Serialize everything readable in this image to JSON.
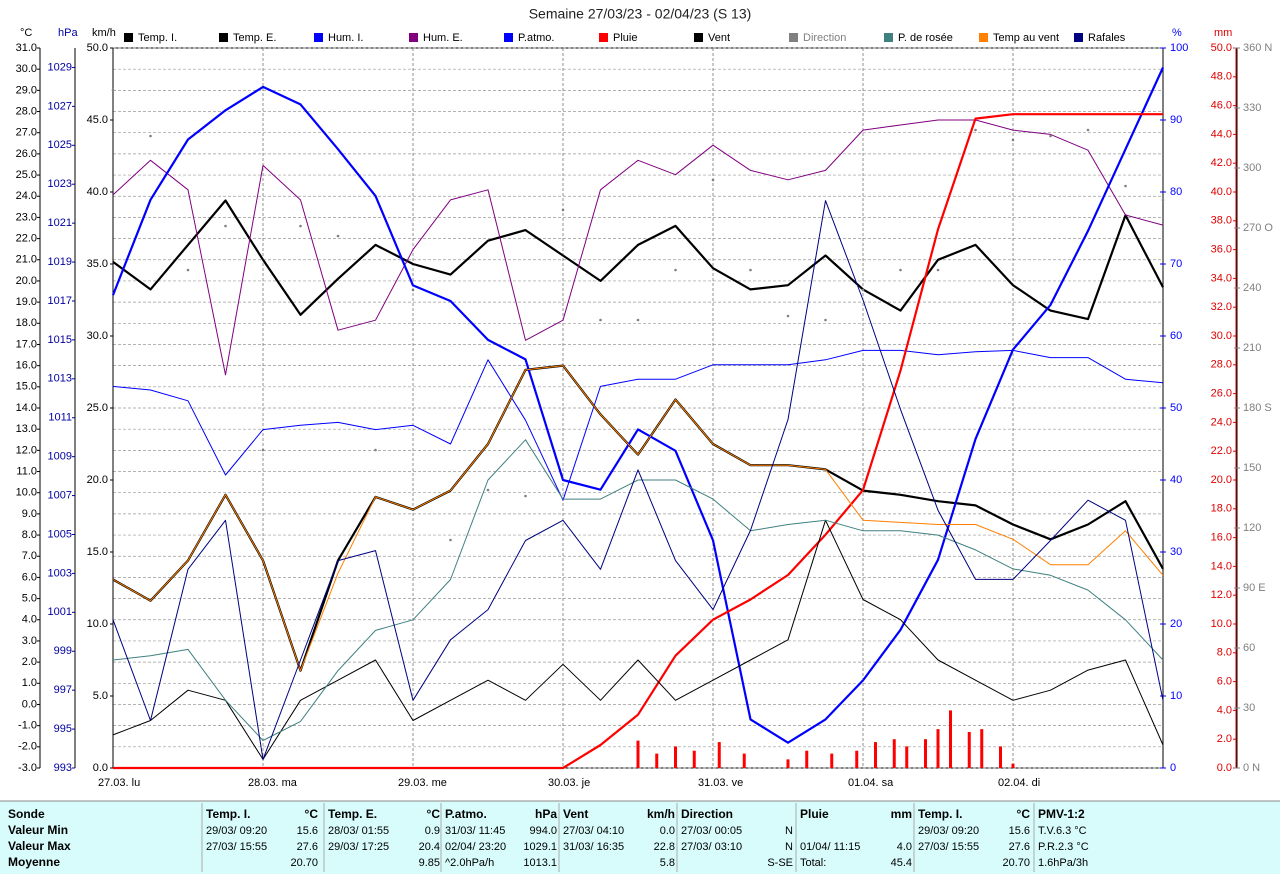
{
  "chart_data": {
    "type": "line",
    "title": "Semaine 27/03/23 - 02/04/23 (S 13)",
    "xlim": [
      "2023-03-27T00:00",
      "2023-04-03T00:00"
    ],
    "xticks": [
      {
        "value": "2023-03-27T00:00",
        "label": "27.03.  lu"
      },
      {
        "value": "2023-03-28T00:00",
        "label": "28.03.  ma"
      },
      {
        "value": "2023-03-29T00:00",
        "label": "29.03.  me"
      },
      {
        "value": "2023-03-30T00:00",
        "label": "30.03.  je"
      },
      {
        "value": "2023-03-31T00:00",
        "label": "31.03.  ve"
      },
      {
        "value": "2023-04-01T00:00",
        "label": "01.04.  sa"
      },
      {
        "value": "2023-04-02T00:00",
        "label": "02.04.  di"
      }
    ],
    "grid": true,
    "axes": [
      {
        "id": "temp",
        "label": "°C",
        "color": "#000000",
        "lim": [
          -3,
          31
        ],
        "ticks": [
          {
            "value": -3,
            "label": "-3.0"
          },
          {
            "value": -2,
            "label": "-2.0"
          },
          {
            "value": -1,
            "label": "-1.0"
          },
          {
            "value": 0,
            "label": "0.0"
          },
          {
            "value": 1,
            "label": "1.0"
          },
          {
            "value": 2,
            "label": "2.0"
          },
          {
            "value": 3,
            "label": "3.0"
          },
          {
            "value": 4,
            "label": "4.0"
          },
          {
            "value": 5,
            "label": "5.0"
          },
          {
            "value": 6,
            "label": "6.0"
          },
          {
            "value": 7,
            "label": "7.0"
          },
          {
            "value": 8,
            "label": "8.0"
          },
          {
            "value": 9,
            "label": "9.0"
          },
          {
            "value": 10,
            "label": "10.0"
          },
          {
            "value": 11,
            "label": "11.0"
          },
          {
            "value": 12,
            "label": "12.0"
          },
          {
            "value": 13,
            "label": "13.0"
          },
          {
            "value": 14,
            "label": "14.0"
          },
          {
            "value": 15,
            "label": "15.0"
          },
          {
            "value": 16,
            "label": "16.0"
          },
          {
            "value": 17,
            "label": "17.0"
          },
          {
            "value": 18,
            "label": "18.0"
          },
          {
            "value": 19,
            "label": "19.0"
          },
          {
            "value": 20,
            "label": "20.0"
          },
          {
            "value": 21,
            "label": "21.0"
          },
          {
            "value": 22,
            "label": "22.0"
          },
          {
            "value": 23,
            "label": "23.0"
          },
          {
            "value": 24,
            "label": "24.0"
          },
          {
            "value": 25,
            "label": "25.0"
          },
          {
            "value": 26,
            "label": "26.0"
          },
          {
            "value": 27,
            "label": "27.0"
          },
          {
            "value": 28,
            "label": "28.0"
          },
          {
            "value": 29,
            "label": "29.0"
          },
          {
            "value": 30,
            "label": "30.0"
          },
          {
            "value": 31,
            "label": "31.0"
          }
        ]
      },
      {
        "id": "hpa",
        "label": "hPa",
        "color": "#0000a0",
        "lim": [
          993,
          1030
        ],
        "ticks": [
          993,
          995,
          997,
          999,
          1001,
          1003,
          1005,
          1007,
          1009,
          1011,
          1013,
          1015,
          1017,
          1019,
          1021,
          1023,
          1025,
          1027,
          1029
        ]
      },
      {
        "id": "kmh",
        "label": "km/h",
        "color": "#000000",
        "lim": [
          0,
          50
        ],
        "ticks": [
          {
            "value": 0,
            "label": "0.0"
          },
          {
            "value": 5,
            "label": "5.0"
          },
          {
            "value": 10,
            "label": "10.0"
          },
          {
            "value": 15,
            "label": "15.0"
          },
          {
            "value": 20,
            "label": "20.0"
          },
          {
            "value": 25,
            "label": "25.0"
          },
          {
            "value": 30,
            "label": "30.0"
          },
          {
            "value": 35,
            "label": "35.0"
          },
          {
            "value": 40,
            "label": "40.0"
          },
          {
            "value": 45,
            "label": "45.0"
          },
          {
            "value": 50,
            "label": "50.0"
          }
        ]
      },
      {
        "id": "pct",
        "label": "%",
        "color": "#0000ff",
        "lim": [
          0,
          100
        ],
        "ticks": [
          0,
          10,
          20,
          30,
          40,
          50,
          60,
          70,
          80,
          90,
          100
        ]
      },
      {
        "id": "mm",
        "label": "mm",
        "color": "#e00000",
        "lim": [
          0,
          50
        ],
        "ticks": [
          {
            "value": 0,
            "label": "0.0"
          },
          {
            "value": 2,
            "label": "2.0"
          },
          {
            "value": 4,
            "label": "4.0"
          },
          {
            "value": 6,
            "label": "6.0"
          },
          {
            "value": 8,
            "label": "8.0"
          },
          {
            "value": 10,
            "label": "10.0"
          },
          {
            "value": 12,
            "label": "12.0"
          },
          {
            "value": 14,
            "label": "14.0"
          },
          {
            "value": 16,
            "label": "16.0"
          },
          {
            "value": 18,
            "label": "18.0"
          },
          {
            "value": 20,
            "label": "20.0"
          },
          {
            "value": 22,
            "label": "22.0"
          },
          {
            "value": 24,
            "label": "24.0"
          },
          {
            "value": 26,
            "label": "26.0"
          },
          {
            "value": 28,
            "label": "28.0"
          },
          {
            "value": 30,
            "label": "30.0"
          },
          {
            "value": 32,
            "label": "32.0"
          },
          {
            "value": 34,
            "label": "34.0"
          },
          {
            "value": 36,
            "label": "36.0"
          },
          {
            "value": 38,
            "label": "38.0"
          },
          {
            "value": 40,
            "label": "40.0"
          },
          {
            "value": 42,
            "label": "42.0"
          },
          {
            "value": 44,
            "label": "44.0"
          },
          {
            "value": 46,
            "label": "46.0"
          },
          {
            "value": 48,
            "label": "48.0"
          },
          {
            "value": 50,
            "label": "50.0"
          }
        ]
      },
      {
        "id": "dir",
        "color": "#808080",
        "lim": [
          0,
          360
        ],
        "ticks": [
          {
            "value": 0,
            "label": "0 N"
          },
          30,
          60,
          {
            "value": 90,
            "label": "90 E"
          },
          120,
          150,
          {
            "value": 180,
            "label": "180 S"
          },
          210,
          240,
          {
            "value": 270,
            "label": "270 O"
          },
          300,
          330,
          {
            "value": 360,
            "label": "360 N"
          }
        ]
      }
    ],
    "x": [
      "2023-03-27T00:00",
      "2023-03-27T06:00",
      "2023-03-27T12:00",
      "2023-03-27T18:00",
      "2023-03-28T00:00",
      "2023-03-28T06:00",
      "2023-03-28T12:00",
      "2023-03-28T18:00",
      "2023-03-29T00:00",
      "2023-03-29T06:00",
      "2023-03-29T12:00",
      "2023-03-29T18:00",
      "2023-03-30T00:00",
      "2023-03-30T06:00",
      "2023-03-30T12:00",
      "2023-03-30T18:00",
      "2023-03-31T00:00",
      "2023-03-31T06:00",
      "2023-03-31T12:00",
      "2023-03-31T18:00",
      "2023-04-01T00:00",
      "2023-04-01T06:00",
      "2023-04-01T12:00",
      "2023-04-01T18:00",
      "2023-04-02T00:00",
      "2023-04-02T06:00",
      "2023-04-02T12:00",
      "2023-04-02T18:00",
      "2023-04-03T00:00"
    ],
    "series": [
      {
        "name": "Temp. I.",
        "color": "#000000",
        "axis": "temp",
        "line_width": 2.2,
        "values": [
          20.9,
          19.6,
          21.7,
          23.8,
          21.0,
          18.4,
          20.1,
          21.7,
          20.8,
          20.3,
          21.9,
          22.4,
          21.2,
          20.0,
          21.7,
          22.6,
          20.6,
          19.6,
          19.8,
          21.2,
          19.6,
          18.6,
          21.0,
          21.7,
          19.8,
          18.6,
          18.2,
          23.1,
          19.7
        ]
      },
      {
        "name": "Temp. E.",
        "color": "#000000",
        "axis": "temp",
        "line_width": 2.2,
        "values": [
          5.9,
          4.9,
          6.8,
          9.9,
          6.8,
          1.6,
          6.8,
          9.8,
          9.2,
          10.1,
          12.3,
          15.8,
          16.0,
          13.7,
          11.8,
          14.4,
          12.3,
          11.3,
          11.3,
          11.1,
          10.1,
          9.9,
          9.6,
          9.4,
          8.5,
          7.8,
          8.5,
          9.6,
          6.4
        ]
      },
      {
        "name": "Hum. I.",
        "color": "#0000ff",
        "axis": "pct",
        "line_width": 1,
        "values": [
          53,
          52.5,
          51,
          40.7,
          47,
          47.6,
          48,
          47,
          47.6,
          45,
          56.7,
          48.3,
          37.2,
          53,
          54,
          54,
          56,
          56,
          56,
          56.7,
          58,
          58,
          57.4,
          57.8,
          58,
          57,
          57,
          54,
          53.5
        ]
      },
      {
        "name": "Hum. E.",
        "color": "#800080",
        "axis": "pct",
        "line_width": 1,
        "values": [
          79.6,
          84.4,
          80.3,
          54.6,
          83.7,
          78.9,
          60.8,
          62.2,
          72,
          78.9,
          80.3,
          59.4,
          62.2,
          80.3,
          84.4,
          82.4,
          86.5,
          83,
          81.7,
          83,
          88.6,
          89.3,
          90,
          90,
          88.6,
          88,
          85.8,
          76.8,
          75.4
        ]
      },
      {
        "name": "P.atmo.",
        "color": "#0000ff",
        "axis": "hpa",
        "line_width": 2.2,
        "values": [
          1017.3,
          1022.2,
          1025.3,
          1026.8,
          1028,
          1027.1,
          1024.8,
          1022.4,
          1017.8,
          1017,
          1015,
          1014,
          1007.8,
          1007.3,
          1010.4,
          1009.3,
          1004.7,
          995.5,
          994.3,
          995.5,
          997.5,
          1000.1,
          1003.7,
          1009.9,
          1014.5,
          1016.8,
          1020.6,
          1024.8,
          1029
        ]
      },
      {
        "name": "Pluie",
        "color": "#ff0000",
        "axis": "mm",
        "line_width": 2.2,
        "values": [
          0,
          0,
          0,
          0,
          0,
          0,
          0,
          0,
          0,
          0,
          0,
          0,
          0,
          1.6,
          3.7,
          7.8,
          10.3,
          11.7,
          13.4,
          16.2,
          19.3,
          27.6,
          37.4,
          45.1,
          45.4,
          45.4,
          45.4,
          45.4,
          45.4
        ]
      },
      {
        "name": "Vent",
        "color": "#000000",
        "axis": "kmh",
        "line_width": 1,
        "values": [
          2.3,
          3.3,
          5.4,
          4.7,
          0.6,
          4.7,
          6.1,
          7.5,
          3.3,
          4.7,
          6.1,
          4.7,
          7.2,
          4.7,
          7.5,
          4.7,
          6.1,
          7.5,
          8.9,
          17.2,
          11.7,
          10.3,
          7.5,
          6.1,
          4.7,
          5.4,
          6.8,
          7.5,
          1.6
        ]
      },
      {
        "name": "Direction",
        "color": "#808080",
        "axis": "dir",
        "marker": "dots",
        "values": [
          339,
          316,
          249,
          271,
          159,
          271,
          266,
          159,
          239,
          114,
          139,
          136,
          279,
          224,
          224,
          249,
          294,
          249,
          226,
          224,
          239,
          249,
          249,
          319,
          314,
          316,
          319,
          291,
          284
        ]
      },
      {
        "name": "P. de rosée",
        "color": "#408080",
        "axis": "temp",
        "line_width": 1,
        "values": [
          2.1,
          2.3,
          2.6,
          0.2,
          -1.7,
          -0.8,
          1.6,
          3.5,
          4.0,
          5.9,
          10.6,
          12.5,
          9.7,
          9.7,
          10.6,
          10.6,
          9.7,
          8.2,
          8.5,
          8.7,
          8.2,
          8.2,
          8.0,
          7.3,
          6.4,
          6.1,
          5.4,
          4.0,
          2.1
        ]
      },
      {
        "name": "Temp au vent",
        "color": "#ff8000",
        "axis": "temp",
        "line_width": 1,
        "values": [
          5.9,
          4.9,
          6.8,
          9.9,
          6.8,
          1.6,
          6.2,
          9.8,
          9.2,
          10.1,
          12.3,
          15.8,
          16.0,
          13.7,
          11.8,
          14.4,
          12.3,
          11.3,
          11.3,
          11.1,
          8.7,
          8.6,
          8.5,
          8.5,
          7.8,
          6.6,
          6.6,
          8.2,
          6.1
        ]
      },
      {
        "name": "Rafales",
        "color": "#000080",
        "axis": "kmh",
        "line_width": 1,
        "values": [
          10.3,
          3.3,
          13.8,
          17.2,
          0.6,
          7.5,
          14.4,
          15.1,
          4.7,
          8.9,
          11,
          15.8,
          17.2,
          13.8,
          20.7,
          14.4,
          11,
          16.5,
          24.2,
          39.4,
          32.5,
          24.9,
          17.9,
          13.1,
          13.1,
          15.8,
          18.6,
          17.2,
          4.7
        ]
      }
    ],
    "rain_bars": {
      "color": "#ff0000",
      "axis": "mm",
      "x": [
        "2023-03-30T12:00",
        "2023-03-30T15:00",
        "2023-03-30T18:00",
        "2023-03-30T21:00",
        "2023-03-31T01:00",
        "2023-03-31T05:00",
        "2023-03-31T12:00",
        "2023-03-31T15:00",
        "2023-03-31T19:00",
        "2023-03-31T23:00",
        "2023-04-01T02:00",
        "2023-04-01T05:00",
        "2023-04-01T07:00",
        "2023-04-01T10:00",
        "2023-04-01T12:00",
        "2023-04-01T14:00",
        "2023-04-01T17:00",
        "2023-04-01T19:00",
        "2023-04-01T22:00",
        "2023-04-02T00:00"
      ],
      "values": [
        1.9,
        1.0,
        1.5,
        1.2,
        1.8,
        1.0,
        0.6,
        1.2,
        1.0,
        1.2,
        1.8,
        2.0,
        1.5,
        2.0,
        2.7,
        4.0,
        2.5,
        2.7,
        1.5,
        0.3
      ]
    }
  },
  "summary": {
    "row_labels": [
      "Sonde",
      "Valeur Min",
      "Valeur Max",
      "Moyenne"
    ],
    "groups": [
      {
        "header": [
          "Temp. I.",
          "°C"
        ],
        "rows": [
          [
            "29/03/ 09:20",
            "15.6"
          ],
          [
            "27/03/ 15:55",
            "27.6"
          ],
          [
            "20.70"
          ]
        ]
      },
      {
        "header": [
          "Temp. E.",
          "°C"
        ],
        "rows": [
          [
            "28/03/ 01:55",
            "0.9"
          ],
          [
            "29/03/ 17:25",
            "20.4"
          ],
          [
            "9.85"
          ]
        ]
      },
      {
        "header": [
          "P.atmo.",
          "hPa"
        ],
        "rows": [
          [
            "31/03/ 11:45",
            "994.0"
          ],
          [
            "02/04/ 23:20",
            "1029.1"
          ],
          [
            "^2.0hPa/h",
            "1013.1"
          ]
        ]
      },
      {
        "header": [
          "Vent",
          "km/h"
        ],
        "rows": [
          [
            "27/03/ 04:10",
            "0.0"
          ],
          [
            "31/03/ 16:35",
            "22.8"
          ],
          [
            "5.8"
          ]
        ]
      },
      {
        "header": [
          "Direction"
        ],
        "rows": [
          [
            "27/03/ 00:05",
            "N"
          ],
          [
            "27/03/ 03:10",
            "N"
          ],
          [
            "S-SE"
          ]
        ]
      },
      {
        "header": [
          "Pluie",
          "mm"
        ],
        "rows": [
          [],
          [
            "01/04/ 11:15",
            "4.0"
          ],
          [
            "Total:",
            "45.4"
          ]
        ]
      },
      {
        "header": [
          "Temp. I.",
          "°C"
        ],
        "rows": [
          [
            "29/03/ 09:20",
            "15.6"
          ],
          [
            "27/03/ 15:55",
            "27.6"
          ],
          [
            "20.70"
          ]
        ]
      },
      {
        "header": [
          "PMV-1:2"
        ],
        "align": "left",
        "rows": [
          [
            "T.V.6.3 °C"
          ],
          [
            "P.R.2.3 °C"
          ],
          [
            "1.6hPa/3h"
          ]
        ]
      }
    ]
  }
}
